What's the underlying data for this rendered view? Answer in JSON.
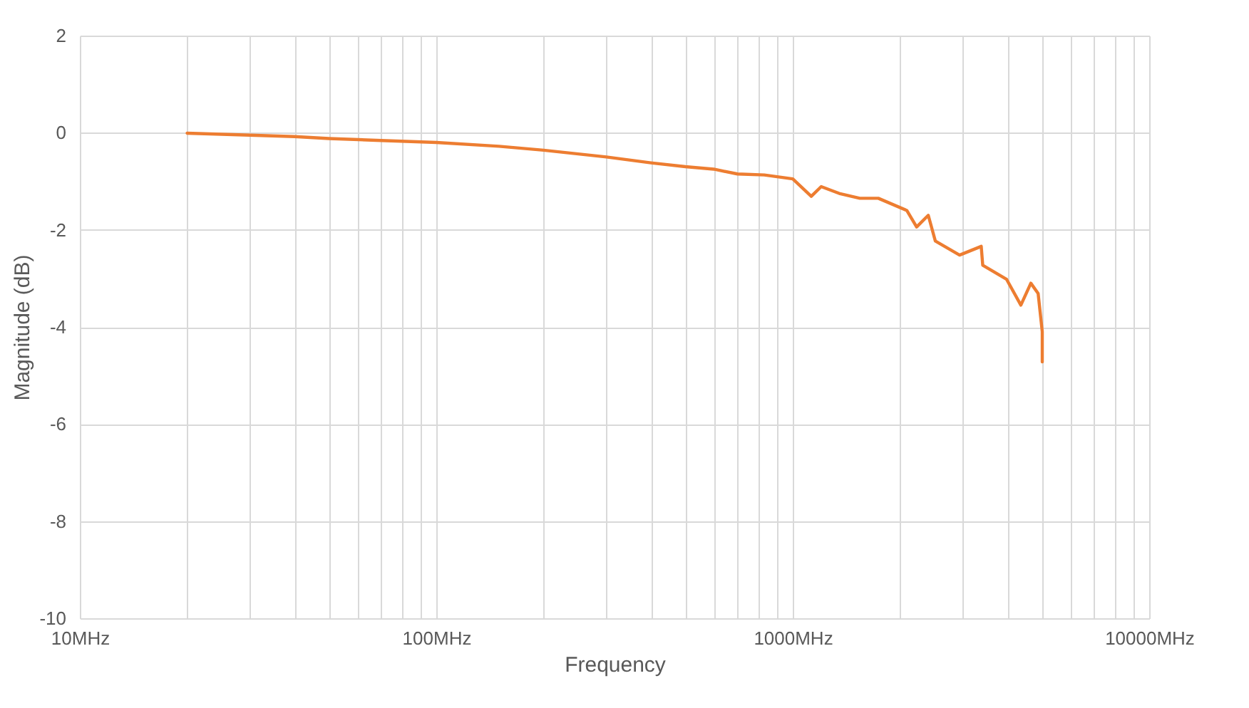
{
  "chart_data": {
    "type": "line",
    "xlabel": "Frequency",
    "ylabel": "Magnitude (dB)",
    "log": "x",
    "xlim": [
      10,
      10000
    ],
    "xticks": [
      {
        "value": 10,
        "label": "10MHz"
      },
      {
        "value": 20,
        "label": null
      },
      {
        "value": 30,
        "label": null
      },
      {
        "value": 40,
        "label": null
      },
      {
        "value": 50,
        "label": null
      },
      {
        "value": 60,
        "label": null
      },
      {
        "value": 70,
        "label": null
      },
      {
        "value": 80,
        "label": null
      },
      {
        "value": 90,
        "label": null
      },
      {
        "value": 100,
        "label": "100MHz"
      },
      {
        "value": 200,
        "label": null
      },
      {
        "value": 300,
        "label": null
      },
      {
        "value": 400,
        "label": null
      },
      {
        "value": 500,
        "label": null
      },
      {
        "value": 600,
        "label": null
      },
      {
        "value": 700,
        "label": null
      },
      {
        "value": 800,
        "label": null
      },
      {
        "value": 900,
        "label": null
      },
      {
        "value": 1000,
        "label": "1000MHz"
      },
      {
        "value": 2000,
        "label": null
      },
      {
        "value": 3000,
        "label": null
      },
      {
        "value": 4000,
        "label": null
      },
      {
        "value": 5000,
        "label": null
      },
      {
        "value": 6000,
        "label": null
      },
      {
        "value": 7000,
        "label": null
      },
      {
        "value": 8000,
        "label": null
      },
      {
        "value": 9000,
        "label": null
      },
      {
        "value": 10000,
        "label": "10000MHz"
      }
    ],
    "ylim": [
      -10,
      2
    ],
    "yticks": [
      -10,
      -8,
      -6,
      -4,
      -2,
      0,
      2
    ],
    "grid": true,
    "marker": "none",
    "line_style": "solid",
    "series": [
      {
        "color": "#ed7d31",
        "x": [
          20,
          30,
          40,
          50,
          70,
          100,
          150,
          200,
          300,
          400,
          500,
          600,
          700,
          832,
          1000,
          1127,
          1202,
          1350,
          1542,
          1738,
          2089,
          2226,
          2400,
          2512,
          2938,
          3379,
          3412,
          3981,
          4365,
          4656,
          4880,
          5012,
          5012
        ],
        "values": [
          -0.01,
          -0.05,
          -0.08,
          -0.12,
          -0.16,
          -0.2,
          -0.28,
          -0.36,
          -0.5,
          -0.62,
          -0.7,
          -0.75,
          -0.85,
          -0.87,
          -0.95,
          -1.31,
          -1.11,
          -1.25,
          -1.35,
          -1.35,
          -1.6,
          -1.94,
          -1.7,
          -2.23,
          -2.52,
          -2.34,
          -2.73,
          -3.02,
          -3.55,
          -3.1,
          -3.31,
          -4.1,
          -4.72
        ]
      }
    ]
  }
}
